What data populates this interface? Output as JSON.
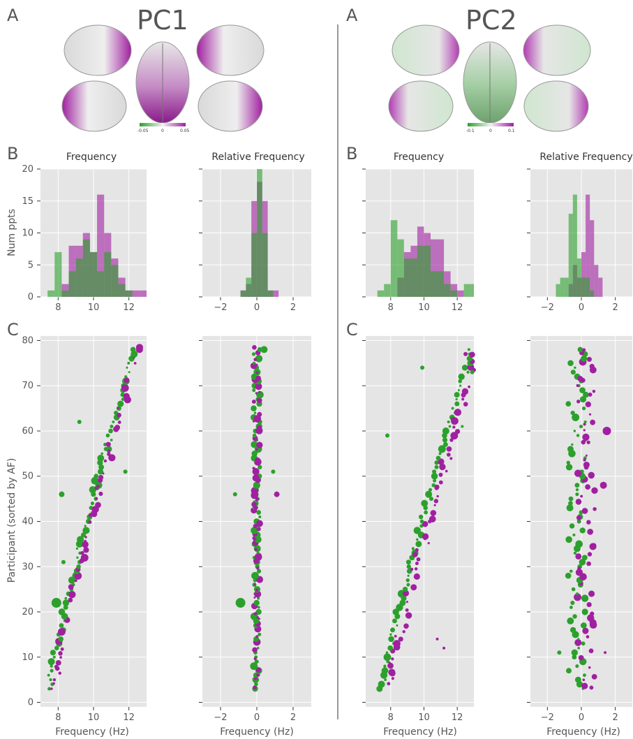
{
  "colors": {
    "green": "#2ca02c",
    "purple": "#a020a0",
    "panel": "#e5e5e5"
  },
  "figure": {
    "panel_letters": {
      "A": "A",
      "B": "B",
      "C": "C"
    },
    "pc1_title": "PC1",
    "pc2_title": "PC2",
    "pc1_colorbar": [
      "-0.05",
      "0",
      "0.05"
    ],
    "pc2_colorbar": [
      "-0.1",
      "0",
      "0.1"
    ],
    "hist_titles": {
      "freq": "Frequency",
      "rel": "Relative Frequency"
    },
    "ylabel_hist": "Num ppts",
    "ylabel_scatter": "Participant (sorted by AF)",
    "xlabel": "Frequency (Hz)"
  },
  "chart_data": [
    {
      "id": "pc1-hist-freq",
      "type": "bar",
      "title": "Frequency",
      "ylabel": "Num ppts",
      "xlim": [
        7,
        13
      ],
      "ylim": [
        0,
        20
      ],
      "xticks": [
        8,
        10,
        12
      ],
      "yticks": [
        0,
        5,
        10,
        15,
        20
      ],
      "bin_width": 0.4,
      "series": [
        {
          "name": "",
          "color": "green",
          "bins": [
            [
              7.4,
              1
            ],
            [
              7.8,
              7
            ],
            [
              8.2,
              1
            ],
            [
              8.6,
              4
            ],
            [
              9.0,
              6
            ],
            [
              9.4,
              9
            ],
            [
              9.8,
              7
            ],
            [
              10.2,
              4
            ],
            [
              10.6,
              7
            ],
            [
              11.0,
              5
            ],
            [
              11.4,
              2
            ],
            [
              11.8,
              1
            ],
            [
              12.2,
              0
            ],
            [
              12.6,
              0
            ]
          ]
        },
        {
          "name": "",
          "color": "purple",
          "bins": [
            [
              7.4,
              0
            ],
            [
              7.8,
              0
            ],
            [
              8.2,
              2
            ],
            [
              8.6,
              8
            ],
            [
              9.0,
              8
            ],
            [
              9.4,
              10
            ],
            [
              9.8,
              7
            ],
            [
              10.2,
              16
            ],
            [
              10.6,
              10
            ],
            [
              11.0,
              6
            ],
            [
              11.4,
              3
            ],
            [
              11.8,
              1
            ],
            [
              12.2,
              1
            ],
            [
              12.6,
              1
            ]
          ]
        }
      ]
    },
    {
      "id": "pc1-hist-rel",
      "type": "bar",
      "title": "Relative Frequency",
      "xlim": [
        -3,
        3
      ],
      "ylim": [
        0,
        20
      ],
      "xticks": [
        -2,
        0,
        2
      ],
      "yticks": [
        0,
        5,
        10,
        15,
        20
      ],
      "bin_width": 0.3,
      "series": [
        {
          "name": "",
          "color": "green",
          "bins": [
            [
              -1.2,
              0
            ],
            [
              -0.9,
              1
            ],
            [
              -0.6,
              3
            ],
            [
              -0.3,
              10
            ],
            [
              0.0,
              20
            ],
            [
              0.3,
              10
            ],
            [
              0.6,
              1
            ],
            [
              0.9,
              0
            ]
          ]
        },
        {
          "name": "",
          "color": "purple",
          "bins": [
            [
              -1.2,
              0
            ],
            [
              -0.9,
              1
            ],
            [
              -0.6,
              2
            ],
            [
              -0.3,
              15
            ],
            [
              0.0,
              18
            ],
            [
              0.3,
              15
            ],
            [
              0.6,
              1
            ],
            [
              0.9,
              1
            ]
          ]
        }
      ]
    },
    {
      "id": "pc2-hist-freq",
      "type": "bar",
      "title": "Frequency",
      "xlim": [
        6.5,
        13
      ],
      "ylim": [
        0,
        20
      ],
      "xticks": [
        8,
        10,
        12
      ],
      "yticks": [
        0,
        5,
        10,
        15,
        20
      ],
      "bin_width": 0.4,
      "series": [
        {
          "name": "",
          "color": "green",
          "bins": [
            [
              7.2,
              1
            ],
            [
              7.6,
              2
            ],
            [
              8.0,
              12
            ],
            [
              8.4,
              9
            ],
            [
              8.8,
              6
            ],
            [
              9.2,
              6
            ],
            [
              9.6,
              8
            ],
            [
              10.0,
              8
            ],
            [
              10.4,
              4
            ],
            [
              10.8,
              4
            ],
            [
              11.2,
              2
            ],
            [
              11.6,
              1
            ],
            [
              12.0,
              0
            ],
            [
              12.4,
              2
            ],
            [
              12.8,
              2
            ]
          ]
        },
        {
          "name": "",
          "color": "purple",
          "bins": [
            [
              7.2,
              0
            ],
            [
              7.6,
              0
            ],
            [
              8.0,
              0
            ],
            [
              8.4,
              3
            ],
            [
              8.8,
              7
            ],
            [
              9.2,
              8
            ],
            [
              9.6,
              11
            ],
            [
              10.0,
              10
            ],
            [
              10.4,
              9
            ],
            [
              10.8,
              9
            ],
            [
              11.2,
              4
            ],
            [
              11.6,
              2
            ],
            [
              12.0,
              1
            ],
            [
              12.4,
              0
            ],
            [
              12.8,
              0
            ]
          ]
        }
      ]
    },
    {
      "id": "pc2-hist-rel",
      "type": "bar",
      "title": "Relative Frequency",
      "xlim": [
        -3,
        3
      ],
      "ylim": [
        0,
        20
      ],
      "xticks": [
        -2,
        0,
        2
      ],
      "yticks": [
        0,
        5,
        10,
        15,
        20
      ],
      "bin_width": 0.25,
      "series": [
        {
          "name": "",
          "color": "green",
          "bins": [
            [
              -1.5,
              2
            ],
            [
              -1.25,
              3
            ],
            [
              -1.0,
              3
            ],
            [
              -0.75,
              13
            ],
            [
              -0.5,
              16
            ],
            [
              -0.25,
              6
            ],
            [
              0.0,
              3
            ],
            [
              0.25,
              3
            ],
            [
              0.5,
              1
            ],
            [
              0.75,
              0
            ],
            [
              1.0,
              0
            ]
          ]
        },
        {
          "name": "",
          "color": "purple",
          "bins": [
            [
              -1.5,
              0
            ],
            [
              -1.25,
              0
            ],
            [
              -1.0,
              0
            ],
            [
              -0.75,
              2
            ],
            [
              -0.5,
              5
            ],
            [
              -0.25,
              3
            ],
            [
              0.0,
              7
            ],
            [
              0.25,
              16
            ],
            [
              0.5,
              12
            ],
            [
              0.75,
              5
            ],
            [
              1.0,
              3
            ]
          ]
        }
      ]
    },
    {
      "id": "pc1-scatter-freq",
      "type": "scatter",
      "xlabel": "Frequency (Hz)",
      "ylabel": "Participant (sorted by AF)",
      "xlim": [
        7,
        13
      ],
      "ylim": [
        -1,
        81
      ],
      "xticks": [
        8,
        10,
        12
      ],
      "yticks": [
        0,
        10,
        20,
        30,
        40,
        50,
        60,
        70,
        80
      ],
      "points": {
        "green_start": 7.5,
        "green_end": 12.3,
        "purple_offset": 0.25,
        "outliers": [
          [
            7.9,
            22,
            "green",
            7
          ],
          [
            8.2,
            46,
            "green",
            4
          ],
          [
            8.3,
            31,
            "green",
            3
          ],
          [
            9.2,
            62,
            "green",
            3
          ],
          [
            10.7,
            56,
            "green",
            3
          ],
          [
            11.8,
            51,
            "green",
            3
          ],
          [
            12.6,
            78,
            "purple",
            5
          ],
          [
            12.3,
            77,
            "green",
            5
          ]
        ]
      }
    },
    {
      "id": "pc1-scatter-rel",
      "type": "scatter",
      "xlabel": "Frequency (Hz)",
      "xlim": [
        -3,
        3
      ],
      "ylim": [
        -1,
        81
      ],
      "xticks": [
        -2,
        0,
        2
      ],
      "yticks": [
        0,
        10,
        20,
        30,
        40,
        50,
        60,
        70,
        80
      ],
      "points": {
        "spread": 0.35,
        "outliers": [
          [
            -0.9,
            22,
            "green",
            7
          ],
          [
            -1.2,
            46,
            "green",
            3
          ],
          [
            0.9,
            51,
            "green",
            3
          ],
          [
            0.4,
            78,
            "green",
            5
          ],
          [
            1.1,
            46,
            "purple",
            4
          ]
        ]
      }
    },
    {
      "id": "pc2-scatter-freq",
      "type": "scatter",
      "xlabel": "Frequency (Hz)",
      "xlim": [
        6.5,
        13
      ],
      "ylim": [
        -1,
        81
      ],
      "xticks": [
        8,
        10,
        12
      ],
      "yticks": [
        0,
        10,
        20,
        30,
        40,
        50,
        60,
        70,
        80
      ],
      "points": {
        "green_start": 7.5,
        "green_end": 12.9,
        "purple_offset": 0.45,
        "outliers": [
          [
            7.8,
            59,
            "green",
            3
          ],
          [
            9.9,
            74,
            "green",
            3
          ],
          [
            11.2,
            12,
            "purple",
            2
          ],
          [
            10.8,
            14,
            "purple",
            2
          ],
          [
            12.3,
            61,
            "green",
            2
          ],
          [
            12.9,
            73,
            "green",
            3
          ],
          [
            12.5,
            77,
            "purple",
            3
          ],
          [
            12.7,
            78,
            "green",
            2
          ]
        ]
      }
    },
    {
      "id": "pc2-scatter-rel",
      "type": "scatter",
      "xlabel": "Frequency (Hz)",
      "xlim": [
        -3,
        3
      ],
      "ylim": [
        -1,
        81
      ],
      "xticks": [
        -2,
        0,
        2
      ],
      "yticks": [
        0,
        10,
        20,
        30,
        40,
        50,
        60,
        70,
        80
      ],
      "points": {
        "spread": 0.75,
        "outliers": [
          [
            1.5,
            60,
            "purple",
            6
          ],
          [
            1.3,
            48,
            "purple",
            5
          ],
          [
            -1.3,
            11,
            "green",
            3
          ],
          [
            1.4,
            11,
            "purple",
            2
          ]
        ]
      }
    }
  ]
}
